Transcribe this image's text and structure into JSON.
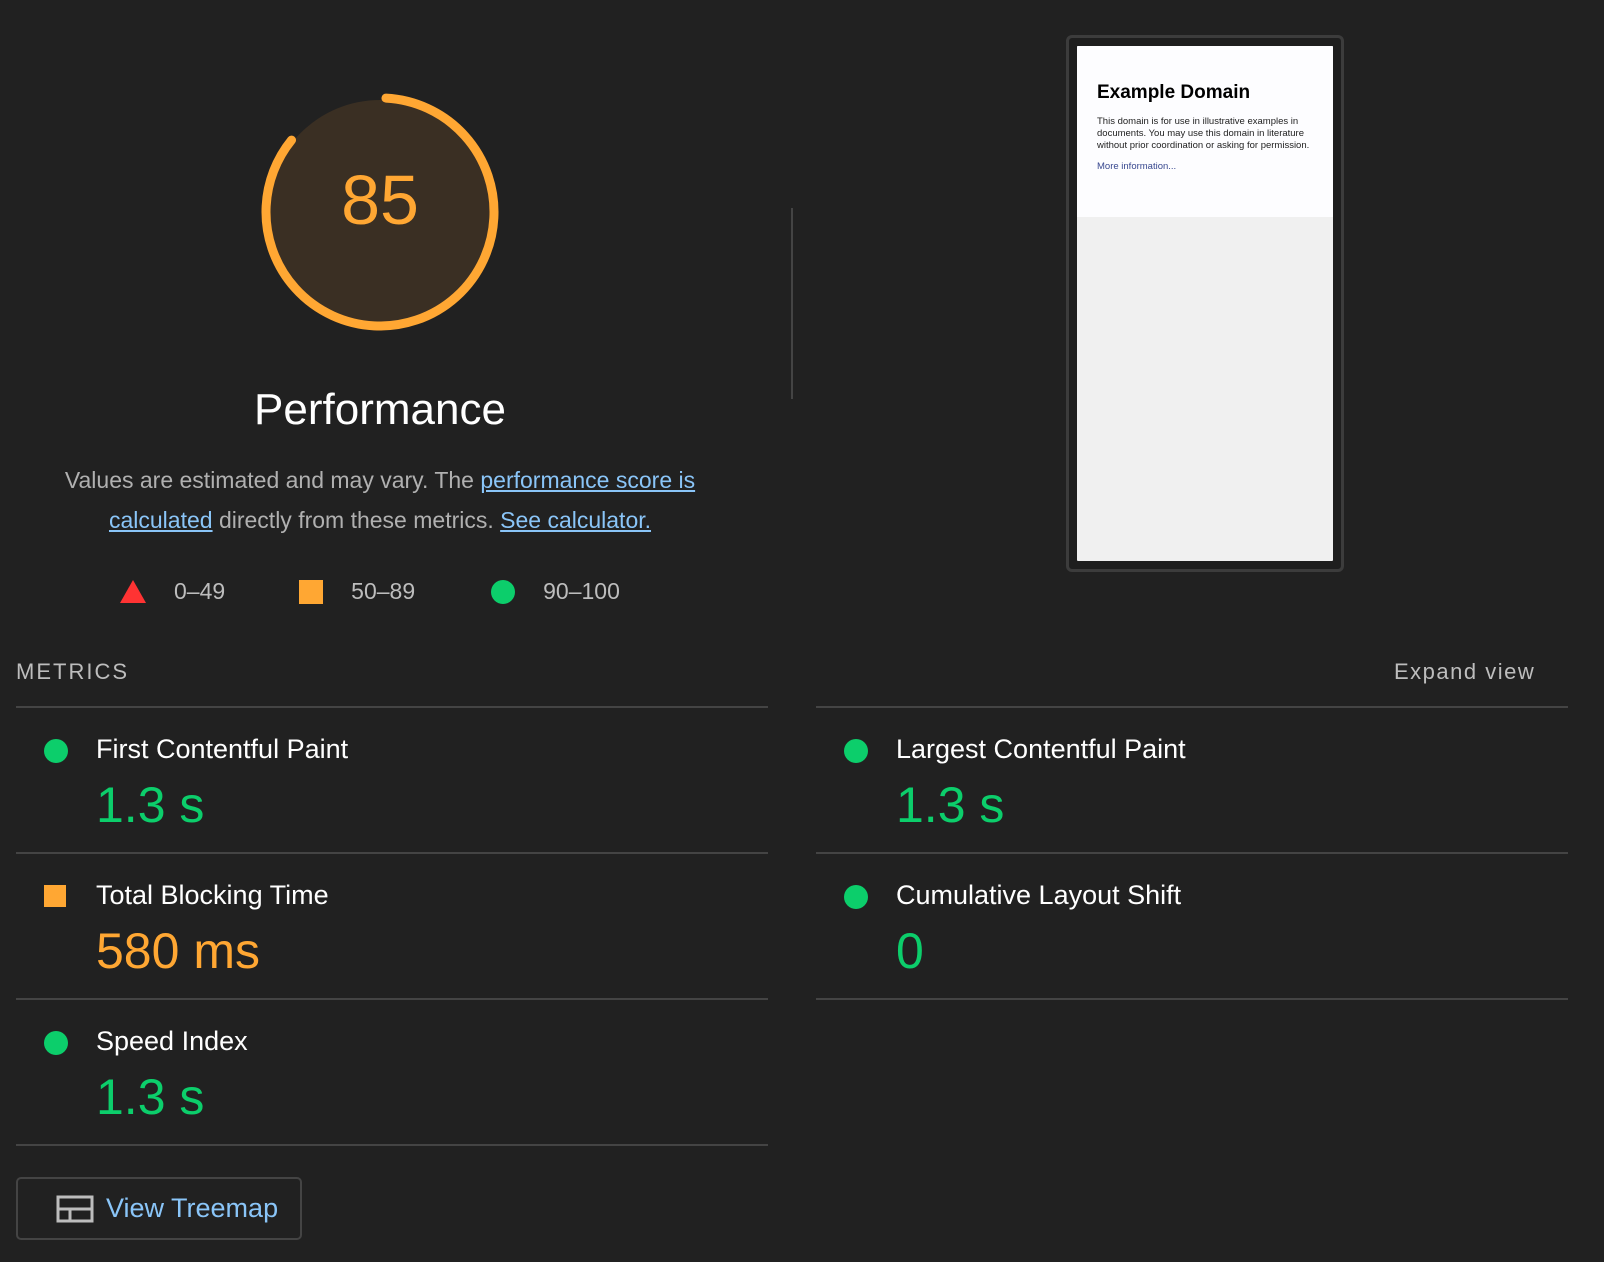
{
  "score": {
    "value": 85,
    "fraction": 0.85,
    "color": "#ffa733",
    "label": "Performance"
  },
  "description": {
    "pre": "Values are estimated and may vary. The ",
    "link1": "performance score is calculated",
    "mid": " directly from these metrics. ",
    "link2": "See calculator."
  },
  "legend": [
    {
      "icon": "triangle-icon",
      "range": "0–49",
      "color": "#ff3333"
    },
    {
      "icon": "square-icon",
      "range": "50–89",
      "color": "#ffa733"
    },
    {
      "icon": "circle-icon",
      "range": "90–100",
      "color": "#0cce6b"
    }
  ],
  "screenshot": {
    "title": "Example Domain",
    "body": "This domain is for use in illustrative examples in documents. You may use this domain in literature without prior coordination or asking for permission.",
    "link": "More information..."
  },
  "metrics_header": "METRICS",
  "expand_view": "Expand view",
  "metrics_left": [
    {
      "name": "First Contentful Paint",
      "value": "1.3 s",
      "status": "pass"
    },
    {
      "name": "Total Blocking Time",
      "value": "580 ms",
      "status": "average"
    },
    {
      "name": "Speed Index",
      "value": "1.3 s",
      "status": "pass"
    }
  ],
  "metrics_right": [
    {
      "name": "Largest Contentful Paint",
      "value": "1.3 s",
      "status": "pass"
    },
    {
      "name": "Cumulative Layout Shift",
      "value": "0",
      "status": "pass"
    }
  ],
  "treemap_button": "View Treemap"
}
